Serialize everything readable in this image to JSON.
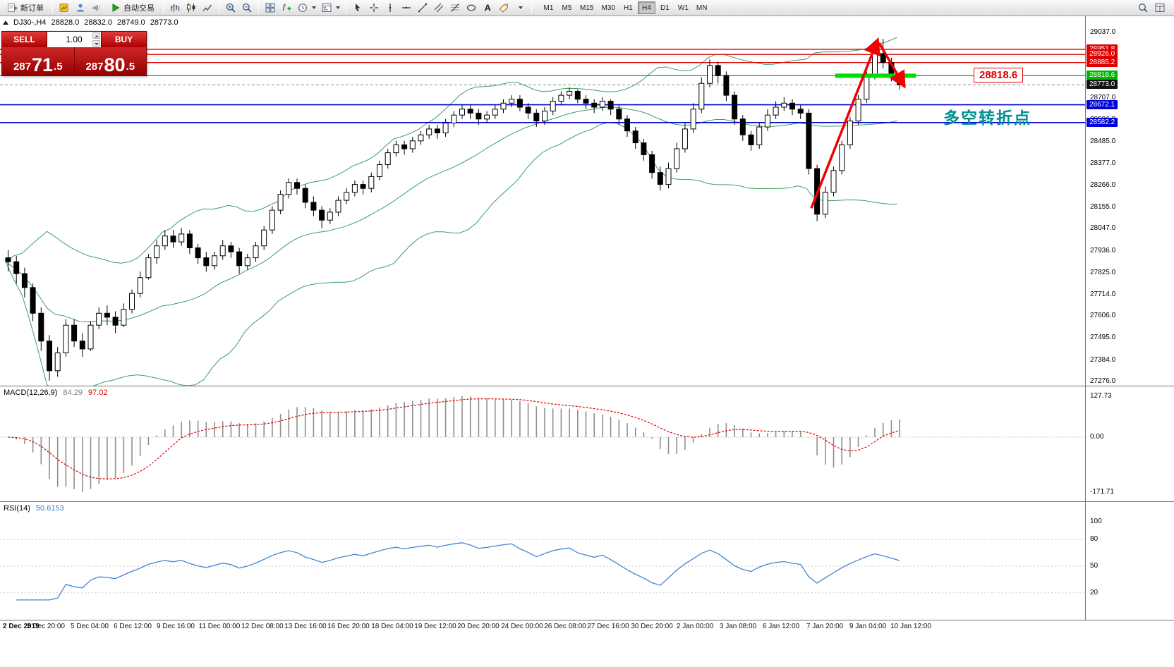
{
  "toolbar": {
    "new_order_label": "新订单",
    "auto_trading_label": "自动交易",
    "timeframes": [
      "M1",
      "M5",
      "M15",
      "M30",
      "H1",
      "H4",
      "D1",
      "W1",
      "MN"
    ],
    "active_timeframe": "H4"
  },
  "symbol_info": {
    "symbol": "DJ30-,H4",
    "open": "28828.0",
    "high": "28832.0",
    "low": "28749.0",
    "close": "28773.0"
  },
  "trade_panel": {
    "sell_label": "SELL",
    "buy_label": "BUY",
    "lot": "1.00",
    "bid": {
      "prefix": "287",
      "big": "71",
      "frac": ".5"
    },
    "ask": {
      "prefix": "287",
      "big": "80",
      "frac": ".5"
    }
  },
  "chart": {
    "annotation_text": "多空转折点",
    "price_tag": "28818.6",
    "axis_labels": [
      "29037.0",
      "28707.0",
      "28596.0",
      "28485.0",
      "28377.0",
      "28266.0",
      "28155.0",
      "28047.0",
      "27936.0",
      "27825.0",
      "27714.0",
      "27606.0",
      "27495.0",
      "27384.0",
      "27276.0"
    ],
    "badges": [
      {
        "text": "28951.8",
        "value": 28951.8,
        "color": "#e00000"
      },
      {
        "text": "28926.0",
        "value": 28926.0,
        "color": "#e00000"
      },
      {
        "text": "28885.2",
        "value": 28885.2,
        "color": "#e00000"
      },
      {
        "text": "28818.6",
        "value": 28818.6,
        "color": "#00b400"
      },
      {
        "text": "28773.0",
        "value": 28773.0,
        "color": "#111111"
      },
      {
        "text": "28672.1",
        "value": 28672.1,
        "color": "#0000d8"
      },
      {
        "text": "28582.2",
        "value": 28582.2,
        "color": "#0000d8"
      }
    ],
    "lines": {
      "red": [
        28951.8,
        28926.0,
        28885.2
      ],
      "green": 28818.6,
      "blue": [
        28672.1,
        28582.2
      ],
      "current": 28773.0
    }
  },
  "macd": {
    "title": "MACD(12,26,9)",
    "value": "84.29",
    "signal_value": "97.02",
    "scale": [
      "127.73",
      "0.00",
      "-171.71"
    ],
    "scale_values": [
      127.73,
      0,
      -171.71
    ]
  },
  "rsi": {
    "title": "RSI(14)",
    "value": "50.6153",
    "scale": [
      "100",
      "80",
      "50",
      "20"
    ],
    "scale_values": [
      100,
      80,
      50,
      20
    ],
    "levels": [
      80,
      50,
      20
    ]
  },
  "time_axis": [
    "2 Dec 2019",
    "3 Dec 20:00",
    "5 Dec 04:00",
    "6 Dec 12:00",
    "9 Dec 16:00",
    "11 Dec 00:00",
    "12 Dec 08:00",
    "13 Dec 16:00",
    "16 Dec 20:00",
    "18 Dec 04:00",
    "19 Dec 12:00",
    "20 Dec 20:00",
    "24 Dec 00:00",
    "26 Dec 08:00",
    "27 Dec 16:00",
    "30 Dec 20:00",
    "2 Jan 00:00",
    "3 Jan 08:00",
    "6 Jan 12:00",
    "7 Jan 20:00",
    "9 Jan 04:00",
    "10 Jan 12:00"
  ],
  "chart_data": {
    "type": "candlestick",
    "symbol": "DJ30",
    "timeframe": "H4",
    "title": "DJ30-,H4",
    "y_range": [
      27276,
      29037
    ],
    "candles": [
      [
        27900,
        27940,
        27830,
        27880
      ],
      [
        27880,
        27910,
        27770,
        27820
      ],
      [
        27820,
        27850,
        27700,
        27750
      ],
      [
        27750,
        27770,
        27580,
        27620
      ],
      [
        27620,
        27650,
        27430,
        27480
      ],
      [
        27480,
        27510,
        27280,
        27330
      ],
      [
        27330,
        27450,
        27300,
        27420
      ],
      [
        27420,
        27590,
        27400,
        27560
      ],
      [
        27560,
        27590,
        27450,
        27480
      ],
      [
        27480,
        27520,
        27400,
        27440
      ],
      [
        27440,
        27580,
        27430,
        27560
      ],
      [
        27560,
        27650,
        27540,
        27620
      ],
      [
        27620,
        27660,
        27560,
        27600
      ],
      [
        27600,
        27630,
        27520,
        27560
      ],
      [
        27560,
        27670,
        27550,
        27640
      ],
      [
        27640,
        27740,
        27620,
        27720
      ],
      [
        27720,
        27830,
        27700,
        27800
      ],
      [
        27800,
        27920,
        27790,
        27900
      ],
      [
        27900,
        27990,
        27870,
        27960
      ],
      [
        27960,
        28040,
        27940,
        28010
      ],
      [
        28010,
        28040,
        27950,
        27980
      ],
      [
        27980,
        28050,
        27960,
        28020
      ],
      [
        28020,
        28040,
        27920,
        27950
      ],
      [
        27950,
        27970,
        27870,
        27900
      ],
      [
        27900,
        27930,
        27830,
        27860
      ],
      [
        27860,
        27930,
        27840,
        27910
      ],
      [
        27910,
        27990,
        27890,
        27960
      ],
      [
        27960,
        27980,
        27900,
        27930
      ],
      [
        27930,
        27950,
        27820,
        27860
      ],
      [
        27860,
        27920,
        27840,
        27900
      ],
      [
        27900,
        27980,
        27880,
        27960
      ],
      [
        27960,
        28060,
        27940,
        28040
      ],
      [
        28040,
        28160,
        28020,
        28140
      ],
      [
        28140,
        28240,
        28120,
        28220
      ],
      [
        28220,
        28300,
        28200,
        28280
      ],
      [
        28280,
        28300,
        28220,
        28250
      ],
      [
        28250,
        28270,
        28150,
        28180
      ],
      [
        28180,
        28210,
        28110,
        28140
      ],
      [
        28140,
        28160,
        28050,
        28090
      ],
      [
        28090,
        28150,
        28070,
        28130
      ],
      [
        28130,
        28210,
        28110,
        28190
      ],
      [
        28190,
        28250,
        28170,
        28230
      ],
      [
        28230,
        28290,
        28210,
        28270
      ],
      [
        28270,
        28290,
        28220,
        28250
      ],
      [
        28250,
        28330,
        28230,
        28310
      ],
      [
        28310,
        28390,
        28290,
        28370
      ],
      [
        28370,
        28450,
        28350,
        28430
      ],
      [
        28430,
        28490,
        28410,
        28470
      ],
      [
        28470,
        28490,
        28420,
        28450
      ],
      [
        28450,
        28510,
        28430,
        28490
      ],
      [
        28490,
        28540,
        28470,
        28520
      ],
      [
        28520,
        28570,
        28500,
        28550
      ],
      [
        28550,
        28570,
        28500,
        28530
      ],
      [
        28530,
        28600,
        28510,
        28580
      ],
      [
        28580,
        28640,
        28560,
        28620
      ],
      [
        28620,
        28670,
        28600,
        28650
      ],
      [
        28650,
        28670,
        28600,
        28630
      ],
      [
        28630,
        28650,
        28570,
        28600
      ],
      [
        28600,
        28640,
        28580,
        28620
      ],
      [
        28620,
        28670,
        28600,
        28650
      ],
      [
        28650,
        28700,
        28630,
        28680
      ],
      [
        28680,
        28720,
        28660,
        28700
      ],
      [
        28700,
        28720,
        28640,
        28660
      ],
      [
        28660,
        28680,
        28600,
        28630
      ],
      [
        28630,
        28650,
        28560,
        28590
      ],
      [
        28590,
        28660,
        28570,
        28640
      ],
      [
        28640,
        28710,
        28620,
        28690
      ],
      [
        28690,
        28740,
        28670,
        28720
      ],
      [
        28720,
        28760,
        28700,
        28740
      ],
      [
        28740,
        28750,
        28680,
        28700
      ],
      [
        28700,
        28720,
        28650,
        28680
      ],
      [
        28680,
        28700,
        28630,
        28660
      ],
      [
        28660,
        28710,
        28640,
        28690
      ],
      [
        28690,
        28700,
        28620,
        28650
      ],
      [
        28650,
        28670,
        28570,
        28600
      ],
      [
        28600,
        28620,
        28510,
        28540
      ],
      [
        28540,
        28560,
        28450,
        28480
      ],
      [
        28480,
        28500,
        28390,
        28420
      ],
      [
        28420,
        28440,
        28300,
        28330
      ],
      [
        28330,
        28360,
        28240,
        28270
      ],
      [
        28270,
        28380,
        28250,
        28350
      ],
      [
        28350,
        28480,
        28330,
        28450
      ],
      [
        28450,
        28580,
        28430,
        28550
      ],
      [
        28550,
        28680,
        28530,
        28650
      ],
      [
        28650,
        28810,
        28630,
        28780
      ],
      [
        28780,
        28900,
        28760,
        28870
      ],
      [
        28870,
        28890,
        28780,
        28820
      ],
      [
        28820,
        28840,
        28690,
        28720
      ],
      [
        28720,
        28740,
        28570,
        28600
      ],
      [
        28600,
        28620,
        28490,
        28520
      ],
      [
        28520,
        28540,
        28440,
        28470
      ],
      [
        28470,
        28580,
        28450,
        28560
      ],
      [
        28560,
        28650,
        28540,
        28620
      ],
      [
        28620,
        28690,
        28600,
        28660
      ],
      [
        28660,
        28710,
        28640,
        28680
      ],
      [
        28680,
        28700,
        28620,
        28650
      ],
      [
        28650,
        28670,
        28600,
        28630
      ],
      [
        28630,
        28650,
        28320,
        28350
      ],
      [
        28350,
        28370,
        28085,
        28120
      ],
      [
        28120,
        28260,
        28100,
        28230
      ],
      [
        28230,
        28360,
        28210,
        28340
      ],
      [
        28340,
        28490,
        28320,
        28470
      ],
      [
        28470,
        28610,
        28450,
        28590
      ],
      [
        28590,
        28720,
        28570,
        28700
      ],
      [
        28700,
        28840,
        28680,
        28820
      ],
      [
        28820,
        28985,
        28800,
        28930
      ],
      [
        28930,
        29005,
        28855,
        28885
      ],
      [
        28885,
        28910,
        28790,
        28830
      ],
      [
        28828,
        28832,
        28749,
        28773
      ]
    ],
    "indicators": {
      "bollinger_period": 20,
      "bollinger_dev": 2,
      "macd": [
        12,
        26,
        9
      ],
      "rsi_period": 14
    },
    "annotations": {
      "arrows": [
        {
          "from_index": 97.6,
          "from_price": 28150,
          "to_index": 105.6,
          "to_price": 28995
        },
        {
          "from_index": 105.8,
          "from_price": 28985,
          "to_index": 108.8,
          "to_price": 28770
        }
      ],
      "green_segment": {
        "price": 28818.6,
        "from_index": 100.5,
        "to_index": 110.3
      }
    }
  }
}
